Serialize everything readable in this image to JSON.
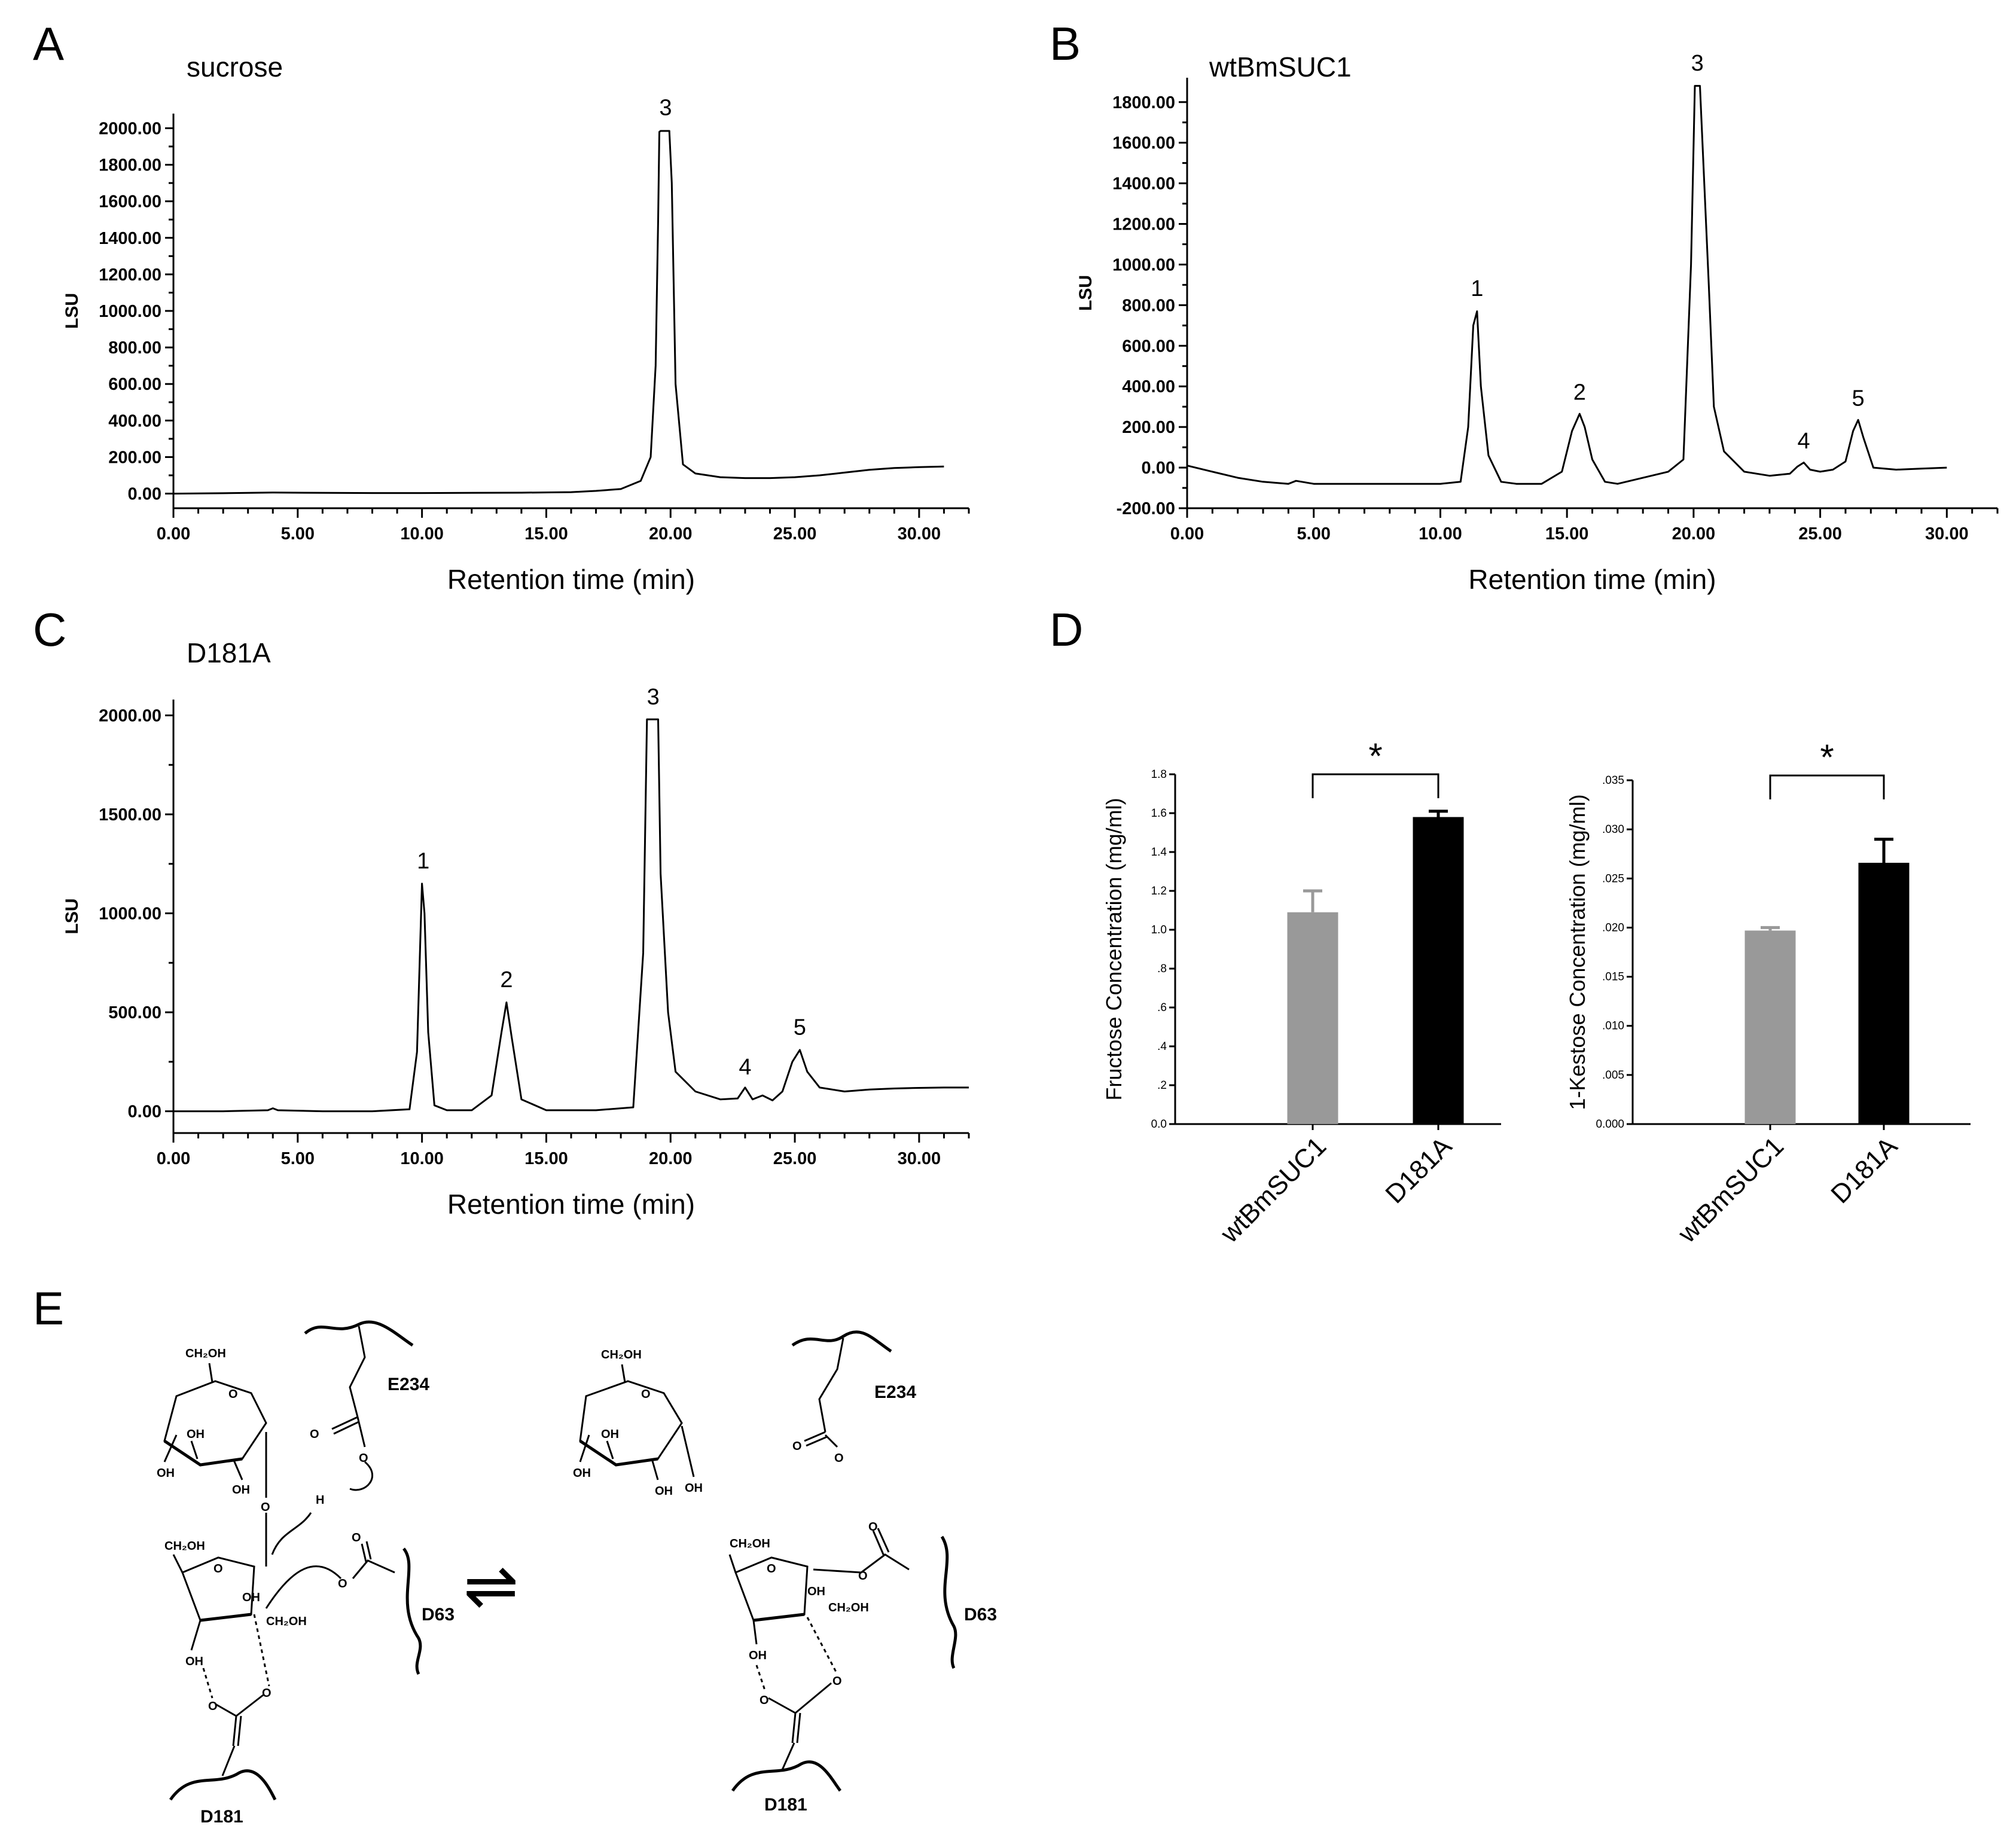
{
  "panels": {
    "A": {
      "letter": "A",
      "title": "sucrose"
    },
    "B": {
      "letter": "B",
      "title": "wtBmSUC1"
    },
    "C": {
      "letter": "C",
      "title": "D181A"
    },
    "D": {
      "letter": "D",
      "significance": "*"
    },
    "E": {
      "letter": "E"
    }
  },
  "chart_data": [
    {
      "id": "A",
      "type": "line",
      "title": "sucrose",
      "xlabel": "Retention time (min)",
      "ylabel": "LSU",
      "xlim": [
        0,
        32
      ],
      "ylim": [
        -80,
        2080
      ],
      "xticks": [
        0,
        5,
        10,
        15,
        20,
        25,
        30
      ],
      "xtick_labels": [
        "0.00",
        "5.00",
        "10.00",
        "15.00",
        "20.00",
        "25.00",
        "30.00"
      ],
      "yticks": [
        0,
        200,
        400,
        600,
        800,
        1000,
        1200,
        1400,
        1600,
        1800,
        2000
      ],
      "ytick_labels": [
        "0.00",
        "200.00",
        "400.00",
        "600.00",
        "800.00",
        "1000.00",
        "1200.00",
        "1400.00",
        "1600.00",
        "1800.00",
        "2000.00"
      ],
      "series": [
        {
          "x": [
            0,
            2,
            4,
            6,
            8,
            10,
            12,
            14,
            16,
            17,
            18,
            18.8,
            19.2,
            19.4,
            19.5,
            19.55,
            19.6,
            19.95,
            20.05,
            20.2,
            20.5,
            21,
            22,
            23,
            24,
            25,
            26,
            27,
            28,
            29,
            30,
            31
          ],
          "y": [
            0,
            2,
            6,
            4,
            3,
            3,
            4,
            5,
            8,
            15,
            25,
            70,
            200,
            700,
            1500,
            1980,
            1985,
            1985,
            1700,
            600,
            160,
            110,
            90,
            85,
            85,
            90,
            100,
            115,
            130,
            140,
            145,
            148
          ]
        }
      ],
      "peak_labels": [
        {
          "label": "3",
          "x": 19.8,
          "y": 2000
        }
      ]
    },
    {
      "id": "B",
      "type": "line",
      "title": "wtBmSUC1",
      "xlabel": "Retention time (min)",
      "ylabel": "LSU",
      "xlim": [
        0,
        32
      ],
      "ylim": [
        -200,
        1920
      ],
      "xticks": [
        0,
        5,
        10,
        15,
        20,
        25,
        30
      ],
      "xtick_labels": [
        "0.00",
        "5.00",
        "10.00",
        "15.00",
        "20.00",
        "25.00",
        "30.00"
      ],
      "yticks": [
        -200,
        0,
        200,
        400,
        600,
        800,
        1000,
        1200,
        1400,
        1600,
        1800
      ],
      "ytick_labels": [
        "-200.00",
        "0.00",
        "200.00",
        "400.00",
        "600.00",
        "800.00",
        "1000.00",
        "1200.00",
        "1400.00",
        "1600.00",
        "1800.00"
      ],
      "series": [
        {
          "x": [
            0,
            1,
            2,
            3,
            4,
            4.3,
            5,
            7,
            9,
            10,
            10.8,
            11.1,
            11.3,
            11.45,
            11.6,
            11.9,
            12.4,
            13,
            14,
            14.8,
            15.2,
            15.5,
            15.7,
            16,
            16.5,
            17,
            18,
            19,
            19.6,
            19.9,
            20.05,
            20.25,
            20.6,
            20.8,
            21.2,
            22,
            23,
            23.8,
            24.1,
            24.35,
            24.6,
            25,
            25.5,
            26,
            26.3,
            26.5,
            26.7,
            27.1,
            28,
            29,
            30
          ],
          "y": [
            10,
            -20,
            -50,
            -70,
            -80,
            -65,
            -80,
            -80,
            -80,
            -80,
            -70,
            200,
            700,
            770,
            400,
            60,
            -70,
            -80,
            -80,
            -20,
            180,
            265,
            200,
            40,
            -70,
            -80,
            -50,
            -20,
            40,
            1000,
            1880,
            1880,
            900,
            300,
            80,
            -20,
            -40,
            -30,
            5,
            25,
            -10,
            -20,
            -10,
            30,
            180,
            235,
            150,
            0,
            -10,
            -5,
            0
          ]
        }
      ],
      "peak_labels": [
        {
          "label": "1",
          "x": 11.45,
          "y": 780
        },
        {
          "label": "2",
          "x": 15.5,
          "y": 270
        },
        {
          "label": "3",
          "x": 20.15,
          "y": 1890
        },
        {
          "label": "4",
          "x": 24.35,
          "y": 30
        },
        {
          "label": "5",
          "x": 26.5,
          "y": 240
        }
      ]
    },
    {
      "id": "C",
      "type": "line",
      "title": "D181A",
      "xlabel": "Retention time (min)",
      "ylabel": "LSU",
      "xlim": [
        0,
        32
      ],
      "ylim": [
        -110,
        2080
      ],
      "xticks": [
        0,
        5,
        10,
        15,
        20,
        25,
        30
      ],
      "xtick_labels": [
        "0.00",
        "5.00",
        "10.00",
        "15.00",
        "20.00",
        "25.00",
        "30.00"
      ],
      "yticks": [
        0,
        500,
        1000,
        1500,
        2000
      ],
      "ytick_labels": [
        "0.00",
        "500.00",
        "1000.00",
        "1500.00",
        "2000.00"
      ],
      "series": [
        {
          "x": [
            0,
            2,
            3.8,
            4.0,
            4.2,
            6,
            8,
            9.5,
            9.8,
            10.0,
            10.1,
            10.25,
            10.5,
            11,
            12,
            12.8,
            13.2,
            13.4,
            13.6,
            14,
            15,
            17,
            18.5,
            18.9,
            19.05,
            19.5,
            19.6,
            19.9,
            20.2,
            21,
            22,
            22.7,
            23.0,
            23.3,
            23.7,
            24.1,
            24.5,
            24.9,
            25.2,
            25.5,
            26,
            27,
            28,
            29,
            30,
            31,
            32
          ],
          "y": [
            0,
            0,
            5,
            15,
            5,
            0,
            0,
            10,
            300,
            1150,
            1000,
            400,
            30,
            5,
            5,
            80,
            400,
            550,
            380,
            60,
            5,
            5,
            20,
            800,
            1980,
            1980,
            1200,
            500,
            200,
            100,
            60,
            65,
            120,
            60,
            80,
            55,
            100,
            250,
            310,
            200,
            120,
            100,
            110,
            115,
            118,
            120,
            120
          ]
        }
      ],
      "peak_labels": [
        {
          "label": "1",
          "x": 10.05,
          "y": 1160
        },
        {
          "label": "2",
          "x": 13.4,
          "y": 560
        },
        {
          "label": "3",
          "x": 19.3,
          "y": 1990
        },
        {
          "label": "4",
          "x": 23.0,
          "y": 120
        },
        {
          "label": "5",
          "x": 25.2,
          "y": 320
        }
      ]
    },
    {
      "id": "D1",
      "type": "bar",
      "categories": [
        "wtBmSUC1",
        "D181A"
      ],
      "values": [
        1.09,
        1.58
      ],
      "errors": [
        0.11,
        0.03
      ],
      "colors": [
        "#999999",
        "#000000"
      ],
      "ylabel": "Fructose Concentration (mg/ml)",
      "ylim": [
        0,
        1.8
      ],
      "yticks": [
        0,
        0.2,
        0.4,
        0.6,
        0.8,
        1.0,
        1.2,
        1.4,
        1.6,
        1.8
      ],
      "ytick_labels": [
        "0.0",
        ".2",
        ".4",
        ".6",
        ".8",
        "1.0",
        "1.2",
        "1.4",
        "1.6",
        "1.8"
      ],
      "significance": "*"
    },
    {
      "id": "D2",
      "type": "bar",
      "categories": [
        "wtBmSUC1",
        "D181A"
      ],
      "values": [
        0.0197,
        0.0266
      ],
      "errors": [
        0.0003,
        0.0024
      ],
      "colors": [
        "#999999",
        "#000000"
      ],
      "ylabel": "1-Kestose Concentration (mg/ml)",
      "ylim": [
        0,
        0.035
      ],
      "yticks": [
        0,
        0.005,
        0.01,
        0.015,
        0.02,
        0.025,
        0.03,
        0.035
      ],
      "ytick_labels": [
        "0.000",
        ".005",
        ".010",
        ".015",
        ".020",
        ".025",
        ".030",
        ".035"
      ],
      "significance": "*"
    }
  ],
  "scheme": {
    "left": {
      "ch2oh_top": "CH₂OH",
      "ch2oh_furan": "CH₂OH",
      "ch2oh_side": "CH₂OH",
      "oh": "OH",
      "o": "O",
      "h": "H",
      "e234": "E234",
      "d63": "D63",
      "d181": "D181"
    },
    "right": {
      "ch2oh_top": "CH₂OH",
      "ch2oh_furan": "CH₂OH",
      "ch2oh_side": "CH₂OH",
      "oh": "OH",
      "o": "O",
      "e234": "E234",
      "d63": "D63",
      "d181": "D181"
    },
    "equilibrium": "⇌"
  }
}
